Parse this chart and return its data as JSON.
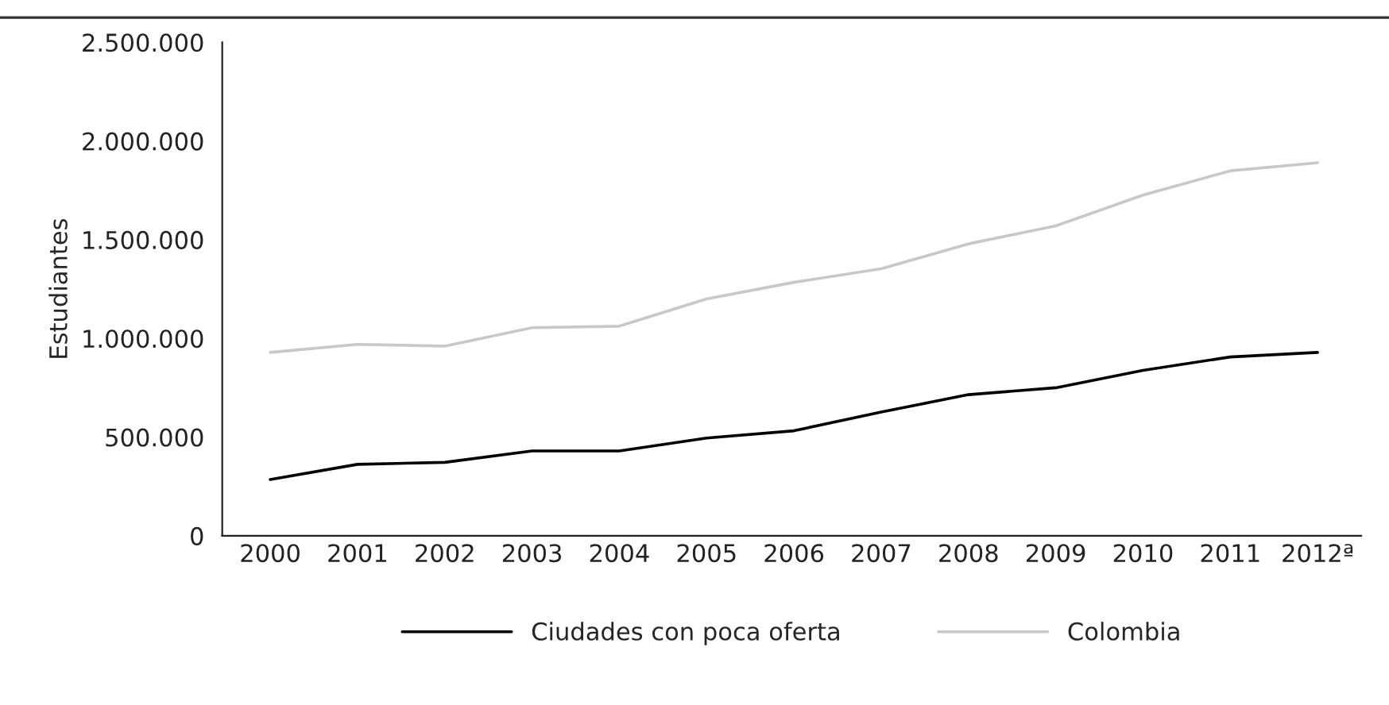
{
  "chart_data": {
    "type": "line",
    "ylabel": "Estudiantes",
    "categories": [
      "2000",
      "2001",
      "2002",
      "2003",
      "2004",
      "2005",
      "2006",
      "2007",
      "2008",
      "2009",
      "2010",
      "2011",
      "2012ª"
    ],
    "series": [
      {
        "name": "Ciudades con poca oferta",
        "color": "#000000",
        "values": [
          285000,
          362000,
          372000,
          430000,
          430000,
          495000,
          532000,
          627000,
          715000,
          750000,
          838000,
          906000,
          929000
        ]
      },
      {
        "name": "Colombia",
        "color": "#c8c8c8",
        "values": [
          929000,
          970000,
          961000,
          1054000,
          1062000,
          1200000,
          1284000,
          1353000,
          1479000,
          1570000,
          1726000,
          1849000,
          1890000
        ]
      }
    ],
    "ylim": [
      0,
      2500000
    ],
    "yticks": [
      {
        "value": 0,
        "label": "0"
      },
      {
        "value": 500000,
        "label": "500.000"
      },
      {
        "value": 1000000,
        "label": "1.000.000"
      },
      {
        "value": 1500000,
        "label": "1.500.000"
      },
      {
        "value": 2000000,
        "label": "2.000.000"
      },
      {
        "value": 2500000,
        "label": "2.500.000"
      }
    ],
    "grid": false,
    "legend": "bottom",
    "marker": "none",
    "line_style": "solid"
  }
}
